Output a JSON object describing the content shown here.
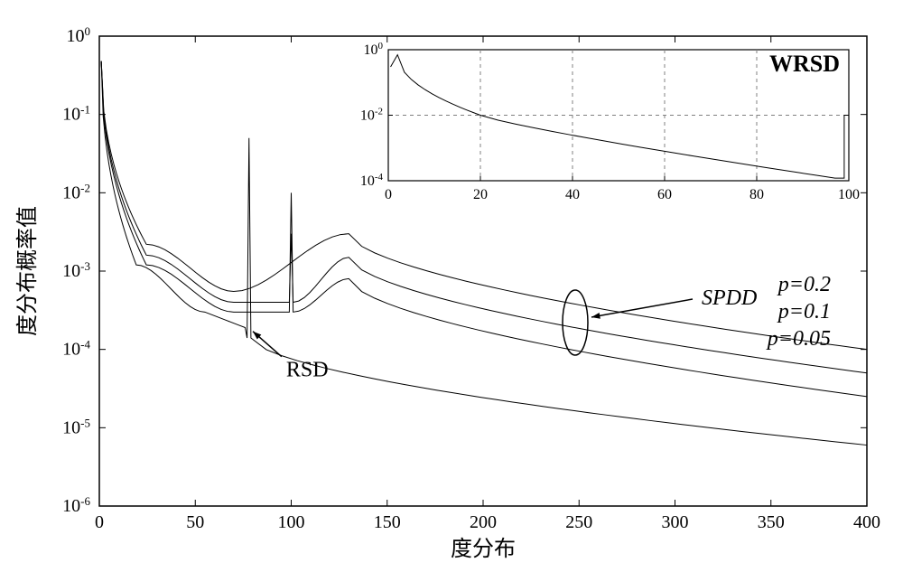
{
  "main_chart": {
    "type": "line",
    "xlim": [
      0,
      400
    ],
    "ylim": [
      1e-06,
      1
    ],
    "yscale": "log",
    "xtick_step": 50,
    "xticks": [
      0,
      50,
      100,
      150,
      200,
      250,
      300,
      350,
      400
    ],
    "ytick_exponents": [
      0,
      -1,
      -2,
      -3,
      -4,
      -5,
      -6
    ],
    "xlabel": "度分布",
    "ylabel": "度分布概率值",
    "label_fontsize": 24,
    "tick_fontsize": 20,
    "background_color": "#ffffff",
    "axis_color": "#000000",
    "line_color": "#000000",
    "line_width": 1,
    "series": {
      "rsd": {
        "label": "RSD",
        "spike_x": 78,
        "spike_value": 0.05,
        "trough_x": 55,
        "trough_value": 0.0003,
        "start_value": 0.48,
        "end_value": 6e-06
      },
      "spdd_p005": {
        "label": "p=0.05",
        "spike_x": 100,
        "spike_value": 0.01,
        "trough_x": 70,
        "trough_value": 0.0003,
        "start_value": 0.48,
        "peak2_x": 130,
        "peak2_value": 0.0008,
        "end_value": 2.5e-05
      },
      "spdd_p01": {
        "label": "p=0.1",
        "spike_x": 100,
        "spike_value": 0.003,
        "trough_x": 70,
        "trough_value": 0.0004,
        "start_value": 0.48,
        "peak2_x": 130,
        "peak2_value": 0.0015,
        "end_value": 5e-05
      },
      "spdd_p02": {
        "label": "p=0.2",
        "trough_x": 70,
        "trough_value": 0.00055,
        "start_value": 0.48,
        "peak2_x": 130,
        "peak2_value": 0.003,
        "end_value": 0.0001
      }
    },
    "annotations": {
      "rsd_text": "RSD",
      "spdd_text": "SPDD",
      "p02_text": "p=0.2",
      "p01_text": "p=0.1",
      "p005_text": "p=0.05"
    }
  },
  "inset_chart": {
    "type": "line",
    "title": "WRSD",
    "xlim": [
      0,
      100
    ],
    "ylim": [
      0.0001,
      1
    ],
    "yscale": "log",
    "xticks": [
      0,
      20,
      40,
      60,
      80,
      100
    ],
    "ytick_exponents": [
      0,
      -2,
      -4
    ],
    "grid_color": "#808080",
    "grid_dash": "4,4",
    "line_color": "#000000",
    "background_color": "#ffffff",
    "series": {
      "wrsd": {
        "start_value": 0.6,
        "peak_x": 2,
        "peak_value": 0.7,
        "end_spike_x": 99,
        "end_spike_value": 0.01,
        "mid_value_at_20": 0.01,
        "tail_value": 0.00012
      }
    }
  }
}
